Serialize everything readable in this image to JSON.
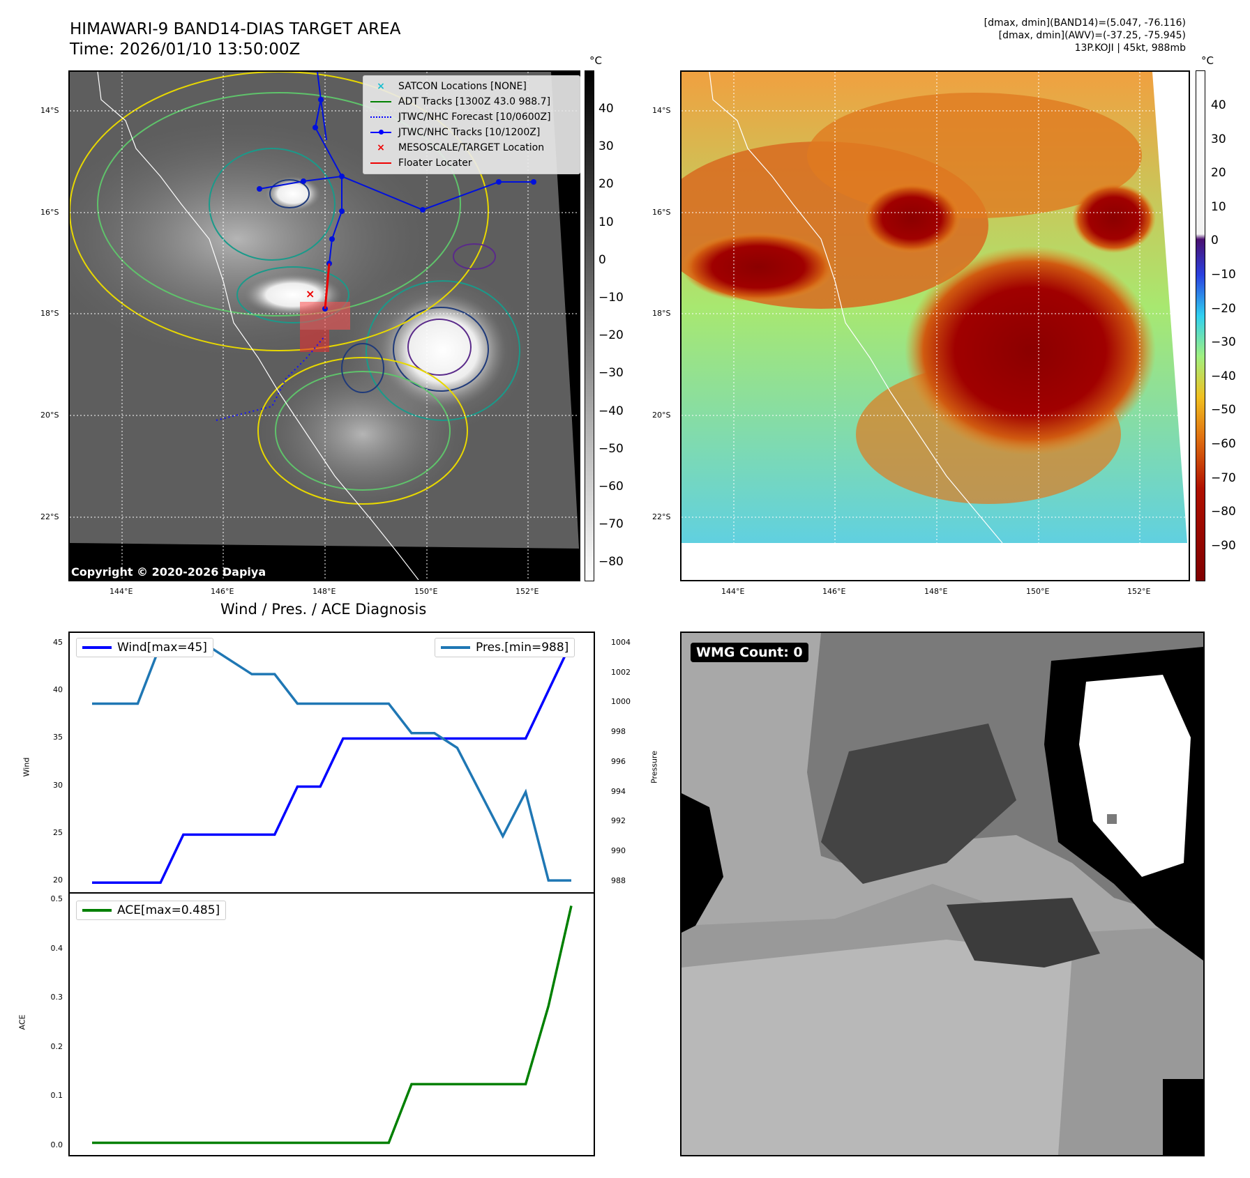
{
  "header": {
    "title_line1": "HIMAWARI-9 BAND14-DIAS TARGET AREA",
    "title_line2": "Time: 2026/01/10 13:50:00Z",
    "info_line1": "[dmax, dmin](BAND14)=(5.047, -76.116)",
    "info_line2": "[dmax, dmin](AWV)=(-37.25, -75.945)",
    "info_line3": "13P.KOJI | 45kt, 988mb"
  },
  "map": {
    "lat_labels": [
      "14°S",
      "16°S",
      "18°S",
      "20°S",
      "22°S"
    ],
    "lon_labels": [
      "144°E",
      "146°E",
      "148°E",
      "150°E",
      "152°E"
    ],
    "copyright": "Copyright © 2020-2026 Dapiya",
    "colorbar_unit": "°C",
    "legend": [
      {
        "label": "SATCON Locations [NONE]",
        "icon": "x-marker-cyan"
      },
      {
        "label": "ADT Tracks [1300Z 43.0 988.7]",
        "icon": "green-line"
      },
      {
        "label": "JTWC/NHC Forecast [10/0600Z]",
        "icon": "blue-dotted-line"
      },
      {
        "label": "JTWC/NHC Tracks [10/1200Z]",
        "icon": "blue-dot-line"
      },
      {
        "label": "MESOSCALE/TARGET Location",
        "icon": "x-marker-red"
      },
      {
        "label": "Floater Locater",
        "icon": "red-line"
      }
    ]
  },
  "colorbar_left": {
    "unit": "°C",
    "ticks": [
      "40",
      "30",
      "20",
      "10",
      "0",
      "−10",
      "−20",
      "−30",
      "−40",
      "−50",
      "−60",
      "−70",
      "−80"
    ]
  },
  "colorbar_right": {
    "unit": "°C",
    "ticks": [
      "40",
      "30",
      "20",
      "10",
      "0",
      "−10",
      "−20",
      "−30",
      "−40",
      "−50",
      "−60",
      "−70",
      "−80",
      "−90"
    ]
  },
  "diagnosis": {
    "title": "Wind / Pres. / ACE Diagnosis",
    "wind_ylabel": "Wind",
    "pres_ylabel": "Pressure",
    "ace_ylabel": "ACE",
    "wind_legend": "Wind[max=45]",
    "pres_legend": "Pres.[min=988]",
    "ace_legend": "ACE[max=0.485]",
    "wind_ticks": [
      "45",
      "40",
      "35",
      "30",
      "25",
      "20"
    ],
    "pres_ticks": [
      "1004",
      "1002",
      "1000",
      "998",
      "996",
      "994",
      "992",
      "990",
      "988"
    ],
    "ace_ticks": [
      "0.5",
      "0.4",
      "0.3",
      "0.2",
      "0.1",
      "0.0"
    ]
  },
  "wmg": {
    "label": "WMG Count: 0"
  },
  "chart_data": [
    {
      "type": "line",
      "title": "Wind / Pres. / ACE Diagnosis",
      "x": [
        0,
        1,
        2,
        3,
        4,
        5,
        6,
        7,
        8,
        9,
        10,
        11,
        12,
        13,
        14,
        15,
        16,
        17,
        18,
        19,
        20,
        21
      ],
      "series": [
        {
          "name": "Wind",
          "color": "#0000ff",
          "axis": "left",
          "ylim": [
            19,
            46
          ],
          "values": [
            20,
            20,
            20,
            20,
            25,
            25,
            25,
            25,
            25,
            30,
            30,
            35,
            35,
            35,
            35,
            35,
            35,
            35,
            35,
            35,
            40,
            45
          ]
        },
        {
          "name": "Pres.",
          "color": "#1f77b4",
          "axis": "right",
          "ylim": [
            987.2,
            1004.8
          ],
          "values": [
            1000,
            1000,
            1000,
            1004,
            1004,
            1004,
            1003,
            1002,
            1002,
            1000,
            1000,
            1000,
            1000,
            1000,
            998,
            998,
            997,
            994,
            991,
            994,
            988,
            988
          ]
        }
      ],
      "ylabel_left": "Wind",
      "ylabel_right": "Pressure"
    },
    {
      "type": "line",
      "title": "ACE",
      "x": [
        0,
        1,
        2,
        3,
        4,
        5,
        6,
        7,
        8,
        9,
        10,
        11,
        12,
        13,
        14,
        15,
        16,
        17,
        18,
        19,
        20,
        21
      ],
      "series": [
        {
          "name": "ACE",
          "color": "#008000",
          "ylim": [
            -0.025,
            0.51
          ],
          "values": [
            0,
            0,
            0,
            0,
            0,
            0,
            0,
            0,
            0,
            0,
            0,
            0,
            0,
            0,
            0.12,
            0.12,
            0.12,
            0.12,
            0.12,
            0.12,
            0.28,
            0.485
          ]
        }
      ],
      "ylabel": "ACE"
    }
  ]
}
